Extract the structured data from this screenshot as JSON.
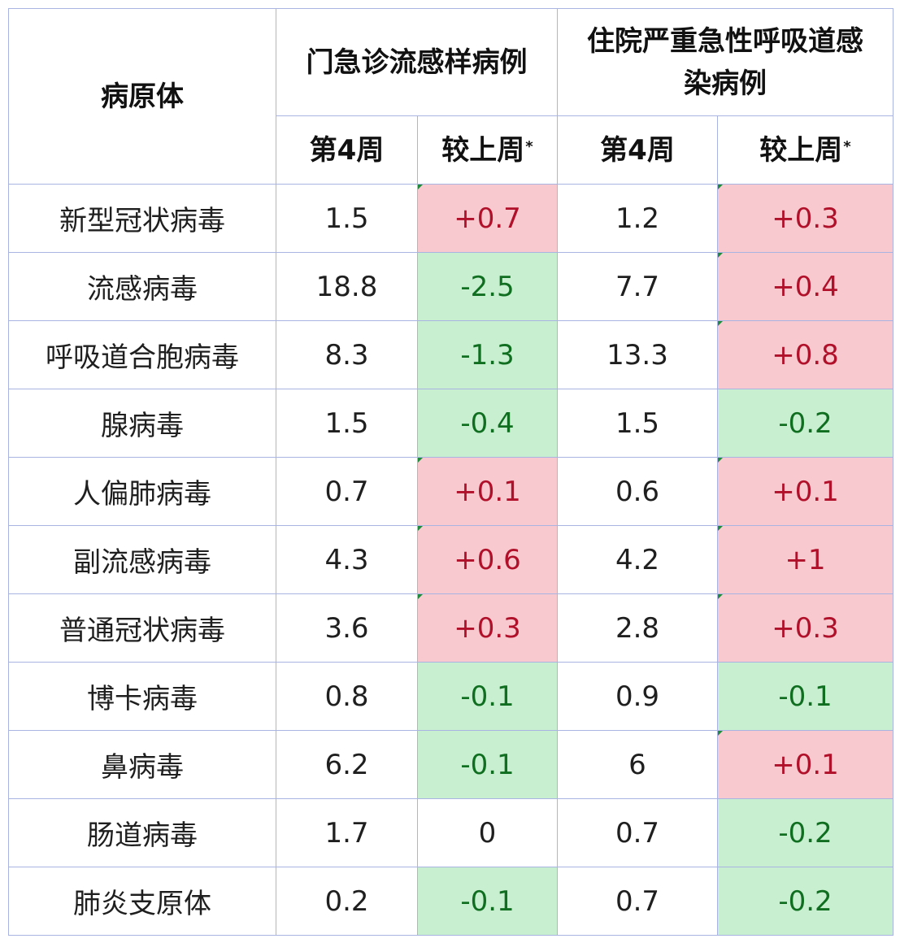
{
  "header": {
    "pathogen_label": "病原体",
    "group_outpatient": "门急诊流感样病例",
    "group_inpatient": "住院严重急性呼吸道感染病例",
    "week_label": "第4周",
    "change_label": "较上周",
    "change_footnote_mark": "*"
  },
  "rows": [
    {
      "name": "新型冠状病毒",
      "op_week": "1.5",
      "op_change": "+0.7",
      "ip_week": "1.2",
      "ip_change": "+0.3"
    },
    {
      "name": "流感病毒",
      "op_week": "18.8",
      "op_change": "-2.5",
      "ip_week": "7.7",
      "ip_change": "+0.4"
    },
    {
      "name": "呼吸道合胞病毒",
      "op_week": "8.3",
      "op_change": "-1.3",
      "ip_week": "13.3",
      "ip_change": "+0.8"
    },
    {
      "name": "腺病毒",
      "op_week": "1.5",
      "op_change": "-0.4",
      "ip_week": "1.5",
      "ip_change": "-0.2"
    },
    {
      "name": "人偏肺病毒",
      "op_week": "0.7",
      "op_change": "+0.1",
      "ip_week": "0.6",
      "ip_change": "+0.1"
    },
    {
      "name": "副流感病毒",
      "op_week": "4.3",
      "op_change": "+0.6",
      "ip_week": "4.2",
      "ip_change": "+1"
    },
    {
      "name": "普通冠状病毒",
      "op_week": "3.6",
      "op_change": "+0.3",
      "ip_week": "2.8",
      "ip_change": "+0.3"
    },
    {
      "name": "博卡病毒",
      "op_week": "0.8",
      "op_change": "-0.1",
      "ip_week": "0.9",
      "ip_change": "-0.1"
    },
    {
      "name": "鼻病毒",
      "op_week": "6.2",
      "op_change": "-0.1",
      "ip_week": "6",
      "ip_change": "+0.1"
    },
    {
      "name": "肠道病毒",
      "op_week": "1.7",
      "op_change": "0",
      "ip_week": "0.7",
      "ip_change": "-0.2"
    },
    {
      "name": "肺炎支原体",
      "op_week": "0.2",
      "op_change": "-0.1",
      "ip_week": "0.7",
      "ip_change": "-0.2"
    }
  ],
  "colors": {
    "increase_bg": "#f8c9cf",
    "increase_text": "#b0102a",
    "decrease_bg": "#c7efd0",
    "decrease_text": "#0f6e1f",
    "grid": "#a9b4e2"
  }
}
